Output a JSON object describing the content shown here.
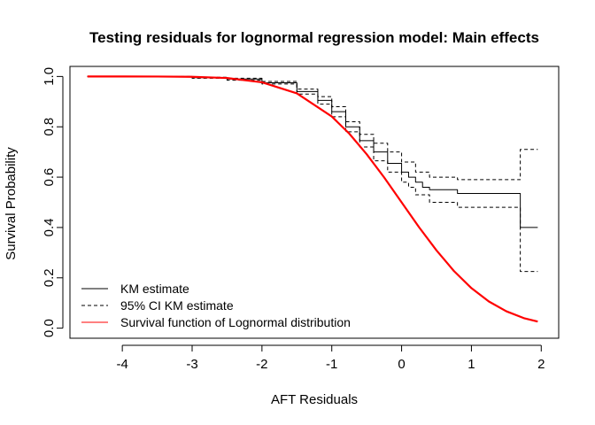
{
  "chart_data": {
    "type": "line",
    "title": "Testing residuals for lognormal regression model: Main effects",
    "xlabel": "AFT Residuals",
    "ylabel": "Survival Probability",
    "xlim": [
      -4.75,
      2.25
    ],
    "ylim": [
      -0.04,
      1.04
    ],
    "xticks": [
      -4,
      -3,
      -2,
      -1,
      0,
      1,
      2
    ],
    "yticks": [
      0.0,
      0.2,
      0.4,
      0.6,
      0.8,
      1.0
    ],
    "ytick_labels": [
      "0.0",
      "0.2",
      "0.4",
      "0.6",
      "0.8",
      "1.0"
    ],
    "grid": false,
    "legend": {
      "position": "bottom-left",
      "entries": [
        {
          "label": "KM estimate",
          "color": "#000000",
          "style": "solid"
        },
        {
          "label": "95% CI KM estimate",
          "color": "#000000",
          "style": "dashed"
        },
        {
          "label": "Survival function of Lognormal distribution",
          "color": "#ff0000",
          "style": "solid"
        }
      ]
    },
    "series": [
      {
        "name": "KM estimate",
        "color": "#000000",
        "style": "solid",
        "step": true,
        "x": [
          -4.5,
          -3.0,
          -2.5,
          -2.0,
          -1.5,
          -1.2,
          -1.0,
          -0.8,
          -0.6,
          -0.4,
          -0.2,
          0.0,
          0.1,
          0.2,
          0.3,
          0.4,
          0.8,
          1.7,
          1.95
        ],
        "y": [
          1.0,
          0.995,
          0.99,
          0.975,
          0.94,
          0.905,
          0.86,
          0.8,
          0.745,
          0.7,
          0.655,
          0.62,
          0.6,
          0.58,
          0.56,
          0.55,
          0.535,
          0.4,
          0.4
        ]
      },
      {
        "name": "95% CI KM estimate (upper)",
        "color": "#000000",
        "style": "dashed",
        "step": true,
        "x": [
          -4.5,
          -3.0,
          -2.5,
          -2.0,
          -1.5,
          -1.2,
          -1.0,
          -0.8,
          -0.6,
          -0.4,
          -0.2,
          0.0,
          0.2,
          0.4,
          0.8,
          1.7,
          1.95
        ],
        "y": [
          1.0,
          0.997,
          0.993,
          0.98,
          0.95,
          0.92,
          0.88,
          0.82,
          0.77,
          0.735,
          0.7,
          0.66,
          0.62,
          0.6,
          0.59,
          0.71,
          0.71
        ]
      },
      {
        "name": "95% CI KM estimate (lower)",
        "color": "#000000",
        "style": "dashed",
        "step": true,
        "x": [
          -4.5,
          -3.0,
          -2.5,
          -2.0,
          -1.5,
          -1.2,
          -1.0,
          -0.8,
          -0.6,
          -0.4,
          -0.2,
          0.0,
          0.1,
          0.2,
          0.4,
          0.8,
          1.7,
          1.95
        ],
        "y": [
          1.0,
          0.993,
          0.985,
          0.97,
          0.93,
          0.89,
          0.84,
          0.78,
          0.72,
          0.665,
          0.62,
          0.58,
          0.56,
          0.53,
          0.5,
          0.48,
          0.225,
          0.225
        ]
      },
      {
        "name": "Survival function of Lognormal distribution",
        "color": "#ff0000",
        "style": "solid",
        "step": false,
        "x": [
          -4.5,
          -4.0,
          -3.5,
          -3.0,
          -2.5,
          -2.0,
          -1.5,
          -1.0,
          -0.75,
          -0.5,
          -0.25,
          0.0,
          0.25,
          0.5,
          0.75,
          1.0,
          1.25,
          1.5,
          1.75,
          1.95
        ],
        "y": [
          1.0,
          1.0,
          0.9998,
          0.9987,
          0.9938,
          0.977,
          0.933,
          0.841,
          0.773,
          0.691,
          0.599,
          0.5,
          0.401,
          0.309,
          0.227,
          0.159,
          0.106,
          0.067,
          0.04,
          0.026
        ]
      }
    ]
  }
}
